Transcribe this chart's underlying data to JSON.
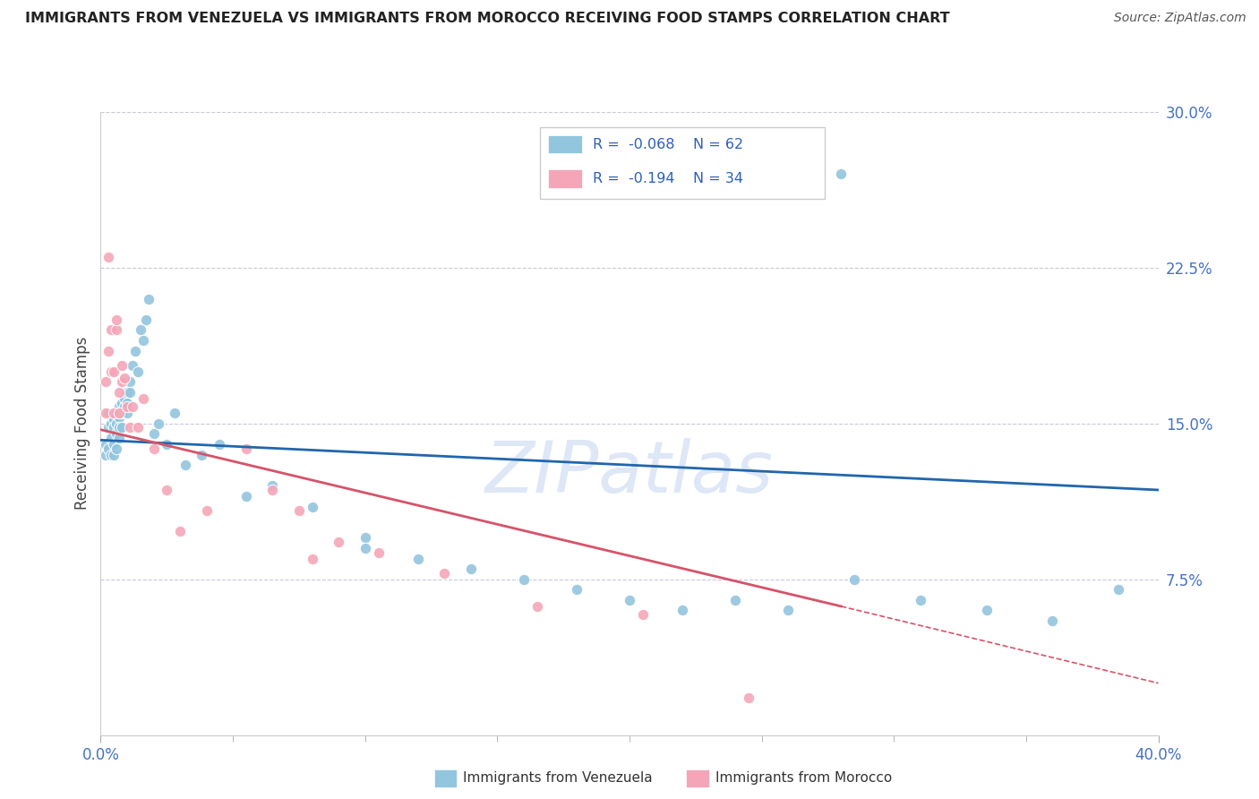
{
  "title": "IMMIGRANTS FROM VENEZUELA VS IMMIGRANTS FROM MOROCCO RECEIVING FOOD STAMPS CORRELATION CHART",
  "source": "Source: ZipAtlas.com",
  "ylabel": "Receiving Food Stamps",
  "xlim": [
    0.0,
    0.4
  ],
  "ylim": [
    0.0,
    0.3
  ],
  "yticks": [
    0.0,
    0.075,
    0.15,
    0.225,
    0.3
  ],
  "ytick_labels": [
    "",
    "7.5%",
    "15.0%",
    "22.5%",
    "30.0%"
  ],
  "venezuela_R": -0.068,
  "venezuela_N": 62,
  "morocco_R": -0.194,
  "morocco_N": 34,
  "venezuela_color": "#92c5de",
  "morocco_color": "#f4a6b8",
  "trendline_venezuela_color": "#2166ac",
  "trendline_morocco_color": "#d6536a",
  "background_color": "#ffffff",
  "grid_color": "#c8c8dc",
  "watermark": "ZIPatlas",
  "watermark_color": "#c8d8f0",
  "legend_R_color": "#2c5fbc",
  "title_color": "#222222",
  "source_color": "#555555",
  "tick_color": "#4472c4",
  "ylabel_color": "#444444",
  "venezuela_x": [
    0.002,
    0.002,
    0.003,
    0.003,
    0.003,
    0.004,
    0.004,
    0.004,
    0.005,
    0.005,
    0.005,
    0.005,
    0.006,
    0.006,
    0.006,
    0.007,
    0.007,
    0.007,
    0.007,
    0.008,
    0.008,
    0.008,
    0.009,
    0.009,
    0.01,
    0.01,
    0.01,
    0.011,
    0.011,
    0.012,
    0.013,
    0.014,
    0.015,
    0.016,
    0.017,
    0.018,
    0.02,
    0.022,
    0.025,
    0.028,
    0.032,
    0.038,
    0.045,
    0.055,
    0.065,
    0.08,
    0.1,
    0.12,
    0.14,
    0.16,
    0.18,
    0.2,
    0.22,
    0.24,
    0.26,
    0.285,
    0.31,
    0.335,
    0.36,
    0.385,
    0.1,
    0.28
  ],
  "venezuela_y": [
    0.14,
    0.135,
    0.155,
    0.148,
    0.138,
    0.15,
    0.143,
    0.135,
    0.152,
    0.148,
    0.14,
    0.135,
    0.15,
    0.145,
    0.138,
    0.158,
    0.153,
    0.148,
    0.143,
    0.16,
    0.155,
    0.148,
    0.162,
    0.158,
    0.165,
    0.16,
    0.155,
    0.17,
    0.165,
    0.178,
    0.185,
    0.175,
    0.195,
    0.19,
    0.2,
    0.21,
    0.145,
    0.15,
    0.14,
    0.155,
    0.13,
    0.135,
    0.14,
    0.115,
    0.12,
    0.11,
    0.095,
    0.085,
    0.08,
    0.075,
    0.07,
    0.065,
    0.06,
    0.065,
    0.06,
    0.075,
    0.065,
    0.06,
    0.055,
    0.07,
    0.09,
    0.27
  ],
  "morocco_x": [
    0.002,
    0.002,
    0.003,
    0.003,
    0.004,
    0.004,
    0.005,
    0.005,
    0.006,
    0.006,
    0.007,
    0.007,
    0.008,
    0.008,
    0.009,
    0.01,
    0.011,
    0.012,
    0.014,
    0.016,
    0.02,
    0.025,
    0.03,
    0.04,
    0.055,
    0.065,
    0.075,
    0.09,
    0.105,
    0.13,
    0.165,
    0.205,
    0.245,
    0.08
  ],
  "morocco_y": [
    0.17,
    0.155,
    0.23,
    0.185,
    0.195,
    0.175,
    0.155,
    0.175,
    0.195,
    0.2,
    0.165,
    0.155,
    0.17,
    0.178,
    0.172,
    0.158,
    0.148,
    0.158,
    0.148,
    0.162,
    0.138,
    0.118,
    0.098,
    0.108,
    0.138,
    0.118,
    0.108,
    0.093,
    0.088,
    0.078,
    0.062,
    0.058,
    0.018,
    0.085
  ],
  "venezuela_trend_x_start": 0.0,
  "venezuela_trend_x_end": 0.4,
  "venezuela_trend_y_start": 0.142,
  "venezuela_trend_y_end": 0.118,
  "morocco_trend_solid_x_start": 0.0,
  "morocco_trend_solid_x_end": 0.28,
  "morocco_trend_solid_y_start": 0.147,
  "morocco_trend_solid_y_end": 0.062,
  "morocco_trend_dash_x_start": 0.28,
  "morocco_trend_dash_x_end": 0.4,
  "morocco_trend_dash_y_start": 0.062,
  "morocco_trend_dash_y_end": 0.025
}
